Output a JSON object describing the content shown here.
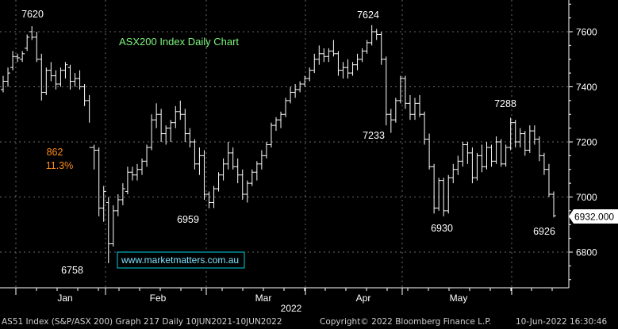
{
  "chart_data": {
    "type": "ohlc",
    "title": "ASX200 Index Daily Chart",
    "watermark": "www.marketmatters.com.au",
    "y_range": [
      6650,
      7750
    ],
    "y_ticks": [
      "6800",
      "7000",
      "7200",
      "7400",
      "7600"
    ],
    "last_price": "6932.000",
    "x_axis": {
      "months": [
        "Jan",
        "Feb",
        "Mar",
        "Apr",
        "May"
      ],
      "year": "2022"
    },
    "bars": [
      [
        7390,
        7440,
        7380,
        7420
      ],
      [
        7420,
        7470,
        7400,
        7450
      ],
      [
        7470,
        7530,
        7460,
        7510
      ],
      [
        7510,
        7520,
        7490,
        7505
      ],
      [
        7500,
        7530,
        7490,
        7520
      ],
      [
        7540,
        7590,
        7530,
        7580
      ],
      [
        7600,
        7620,
        7570,
        7580
      ],
      [
        7580,
        7600,
        7490,
        7500
      ],
      [
        7500,
        7520,
        7350,
        7380
      ],
      [
        7380,
        7470,
        7370,
        7460
      ],
      [
        7460,
        7490,
        7420,
        7440
      ],
      [
        7440,
        7460,
        7390,
        7410
      ],
      [
        7410,
        7470,
        7400,
        7460
      ],
      [
        7460,
        7490,
        7430,
        7480
      ],
      [
        7470,
        7480,
        7390,
        7420
      ],
      [
        7420,
        7450,
        7400,
        7430
      ],
      [
        7430,
        7460,
        7390,
        7400
      ],
      [
        7400,
        7410,
        7330,
        7350
      ],
      [
        7350,
        7370,
        7270,
        7180
      ],
      [
        7180,
        7190,
        7100,
        7170
      ],
      [
        7170,
        7180,
        6930,
        6960
      ],
      [
        6960,
        7040,
        6910,
        7020
      ],
      [
        6980,
        7000,
        6760,
        6830
      ],
      [
        6830,
        6970,
        6820,
        6950
      ],
      [
        6950,
        7010,
        6930,
        6990
      ],
      [
        6990,
        7050,
        6970,
        7030
      ],
      [
        7020,
        7110,
        7010,
        7090
      ],
      [
        7090,
        7110,
        7060,
        7080
      ],
      [
        7080,
        7120,
        7060,
        7100
      ],
      [
        7100,
        7140,
        7080,
        7130
      ],
      [
        7130,
        7190,
        7110,
        7180
      ],
      [
        7180,
        7300,
        7170,
        7280
      ],
      [
        7280,
        7340,
        7250,
        7300
      ],
      [
        7300,
        7320,
        7200,
        7230
      ],
      [
        7230,
        7260,
        7190,
        7250
      ],
      [
        7250,
        7280,
        7200,
        7270
      ],
      [
        7270,
        7330,
        7250,
        7310
      ],
      [
        7310,
        7350,
        7280,
        7300
      ],
      [
        7300,
        7320,
        7200,
        7230
      ],
      [
        7230,
        7250,
        7180,
        7200
      ],
      [
        7200,
        7210,
        7100,
        7120
      ],
      [
        7120,
        7180,
        7080,
        7150
      ],
      [
        7150,
        7170,
        6990,
        7010
      ],
      [
        7010,
        7020,
        6959,
        6980
      ],
      [
        6980,
        7040,
        6960,
        7030
      ],
      [
        7030,
        7090,
        7020,
        7080
      ],
      [
        7080,
        7140,
        7060,
        7120
      ],
      [
        7120,
        7200,
        7100,
        7160
      ],
      [
        7160,
        7180,
        7100,
        7110
      ],
      [
        7110,
        7140,
        7050,
        7080
      ],
      [
        7080,
        7100,
        6990,
        7010
      ],
      [
        7010,
        7060,
        6980,
        7050
      ],
      [
        7050,
        7100,
        7040,
        7090
      ],
      [
        7090,
        7130,
        7060,
        7120
      ],
      [
        7120,
        7170,
        7100,
        7150
      ],
      [
        7150,
        7200,
        7140,
        7190
      ],
      [
        7190,
        7270,
        7180,
        7260
      ],
      [
        7260,
        7290,
        7240,
        7280
      ],
      [
        7280,
        7310,
        7250,
        7300
      ],
      [
        7300,
        7360,
        7290,
        7350
      ],
      [
        7350,
        7400,
        7340,
        7380
      ],
      [
        7380,
        7410,
        7360,
        7390
      ],
      [
        7390,
        7420,
        7380,
        7410
      ],
      [
        7410,
        7440,
        7400,
        7430
      ],
      [
        7430,
        7470,
        7420,
        7460
      ],
      [
        7460,
        7520,
        7450,
        7500
      ],
      [
        7500,
        7550,
        7480,
        7520
      ],
      [
        7520,
        7540,
        7490,
        7510
      ],
      [
        7510,
        7540,
        7490,
        7530
      ],
      [
        7530,
        7570,
        7510,
        7520
      ],
      [
        7520,
        7530,
        7440,
        7460
      ],
      [
        7460,
        7490,
        7430,
        7470
      ],
      [
        7470,
        7500,
        7430,
        7450
      ],
      [
        7450,
        7490,
        7440,
        7480
      ],
      [
        7480,
        7520,
        7460,
        7500
      ],
      [
        7500,
        7540,
        7490,
        7530
      ],
      [
        7530,
        7570,
        7520,
        7560
      ],
      [
        7560,
        7624,
        7550,
        7600
      ],
      [
        7600,
        7610,
        7570,
        7590
      ],
      [
        7590,
        7600,
        7480,
        7500
      ],
      [
        7500,
        7510,
        7260,
        7300
      ],
      [
        7300,
        7320,
        7233,
        7280
      ],
      [
        7280,
        7360,
        7270,
        7350
      ],
      [
        7350,
        7440,
        7340,
        7430
      ],
      [
        7430,
        7440,
        7320,
        7340
      ],
      [
        7340,
        7370,
        7280,
        7300
      ],
      [
        7300,
        7360,
        7280,
        7340
      ],
      [
        7340,
        7370,
        7290,
        7300
      ],
      [
        7300,
        7310,
        7190,
        7210
      ],
      [
        7210,
        7230,
        7100,
        7110
      ],
      [
        7110,
        7120,
        6940,
        6960
      ],
      [
        6960,
        7070,
        6950,
        7060
      ],
      [
        7060,
        7070,
        6930,
        6950
      ],
      [
        6950,
        7080,
        6940,
        7070
      ],
      [
        7070,
        7120,
        7050,
        7100
      ],
      [
        7100,
        7150,
        7080,
        7130
      ],
      [
        7130,
        7200,
        7110,
        7190
      ],
      [
        7190,
        7200,
        7120,
        7160
      ],
      [
        7160,
        7180,
        7050,
        7070
      ],
      [
        7070,
        7160,
        7060,
        7150
      ],
      [
        7150,
        7190,
        7090,
        7110
      ],
      [
        7110,
        7200,
        7100,
        7180
      ],
      [
        7180,
        7190,
        7110,
        7130
      ],
      [
        7130,
        7220,
        7120,
        7200
      ],
      [
        7200,
        7210,
        7110,
        7120
      ],
      [
        7120,
        7190,
        7110,
        7180
      ],
      [
        7180,
        7288,
        7170,
        7270
      ],
      [
        7270,
        7280,
        7180,
        7200
      ],
      [
        7200,
        7250,
        7180,
        7230
      ],
      [
        7230,
        7240,
        7150,
        7170
      ],
      [
        7170,
        7260,
        7160,
        7240
      ],
      [
        7240,
        7260,
        7190,
        7210
      ],
      [
        7210,
        7220,
        7130,
        7150
      ],
      [
        7150,
        7160,
        7080,
        7100
      ],
      [
        7100,
        7120,
        7000,
        7010
      ],
      [
        7010,
        7020,
        6926,
        6932
      ]
    ],
    "annotations": [
      {
        "text": "7620",
        "x": 7,
        "y": 7620,
        "color": "#ffffff"
      },
      {
        "text": "7624",
        "x": 80,
        "y": 7624,
        "color": "#ffffff"
      },
      {
        "text": "7233",
        "x": 81,
        "y": 7233,
        "color": "#ffffff"
      },
      {
        "text": "7288",
        "x": 109,
        "y": 7288,
        "color": "#ffffff"
      },
      {
        "text": "6959",
        "x": 43,
        "y": 6959,
        "color": "#ffffff"
      },
      {
        "text": "6930",
        "x": 92,
        "y": 6930,
        "color": "#ffffff"
      },
      {
        "text": "6926",
        "x": 119,
        "y": 6926,
        "color": "#ffffff"
      },
      {
        "text": "6758",
        "x": 22,
        "y": 6758,
        "color": "#ffffff"
      },
      {
        "text": "862",
        "x": 18,
        "y": 7168,
        "color": "#ff8c1a"
      },
      {
        "text": "11.3%",
        "x": 18,
        "y": 7118,
        "color": "#ff8c1a"
      }
    ]
  },
  "footer": {
    "left": "AS51 Index (S&P/ASX 200) Graph 217  Daily 10JUN2021-10JUN2022",
    "center": "Copyright© 2022 Bloomberg Finance L.P.",
    "right": "10-Jun-2022 16:30:46"
  }
}
